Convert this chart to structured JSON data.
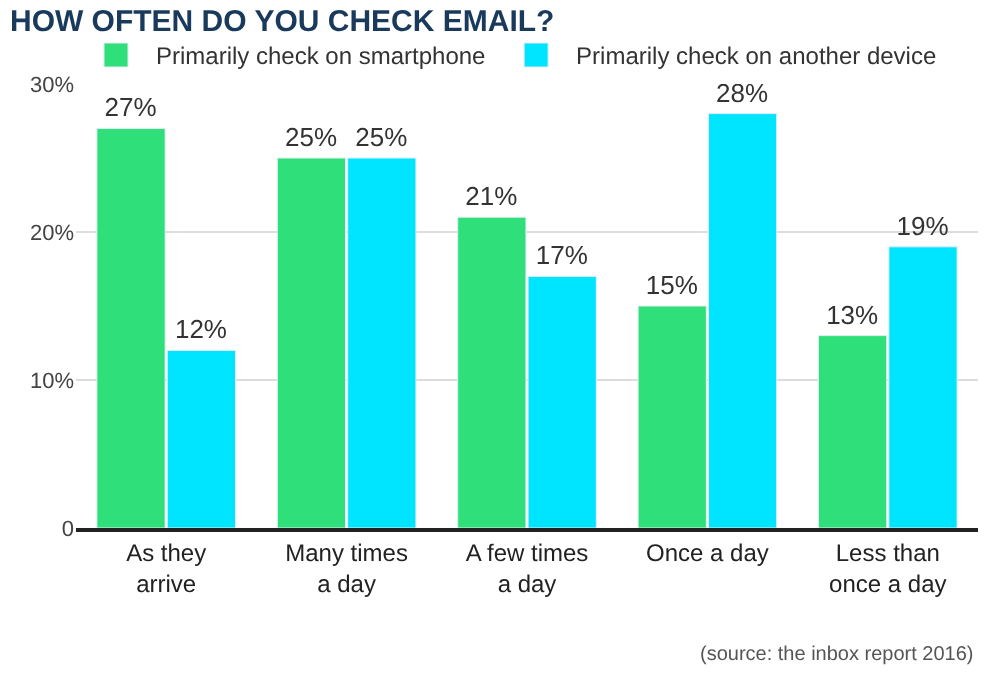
{
  "chart_data": {
    "type": "bar",
    "title": "HOW OFTEN DO YOU CHECK EMAIL?",
    "categories": [
      "As they\narrive",
      "Many times\na day",
      "A few times\na day",
      "Once a day",
      "Less than\nonce a day"
    ],
    "series": [
      {
        "name": "Primarily check on smartphone",
        "color": "#2fe07a",
        "values": [
          27,
          25,
          21,
          15,
          13
        ],
        "value_labels": [
          "27%",
          "25%",
          "21%",
          "15%",
          "13%"
        ]
      },
      {
        "name": "Primarily check on another device",
        "color": "#00e5ff",
        "values": [
          12,
          25,
          17,
          28,
          19
        ],
        "value_labels": [
          "12%",
          "25%",
          "17%",
          "28%",
          "19%"
        ]
      }
    ],
    "ylim": [
      0,
      30
    ],
    "yticks": [
      {
        "value": 0,
        "label": "0"
      },
      {
        "value": 10,
        "label": "10%"
      },
      {
        "value": 20,
        "label": "20%"
      },
      {
        "value": 30,
        "label": "30%"
      }
    ],
    "grid": "y",
    "legend": "top",
    "annotations": [
      "(source: the inbox report 2016)"
    ]
  }
}
